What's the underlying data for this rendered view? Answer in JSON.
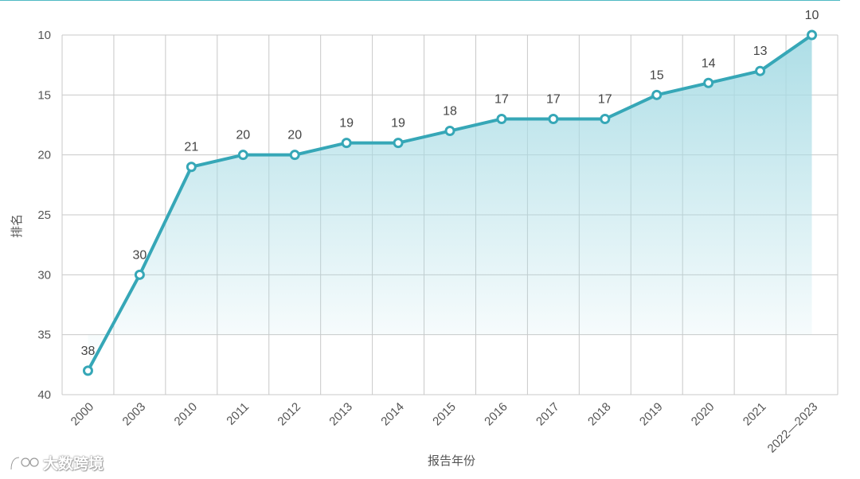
{
  "chart_data": {
    "type": "area",
    "title": "",
    "xlabel": "报告年份",
    "ylabel": "排名",
    "ylim": [
      40,
      10
    ],
    "y_inverted": true,
    "yticks": [
      10,
      15,
      20,
      25,
      30,
      35,
      40
    ],
    "categories": [
      "2000",
      "2003",
      "2010",
      "2011",
      "2012",
      "2013",
      "2014",
      "2015",
      "2016",
      "2017",
      "2018",
      "2019",
      "2020",
      "2021",
      "2022—2023"
    ],
    "series": [
      {
        "values": [
          38,
          30,
          21,
          20,
          20,
          19,
          19,
          18,
          17,
          17,
          17,
          15,
          14,
          13,
          10
        ]
      }
    ],
    "grid": true,
    "line_color": "#36a7b7",
    "fill_color": "#a9dce5"
  },
  "watermark": {
    "text": "大数跨境"
  }
}
